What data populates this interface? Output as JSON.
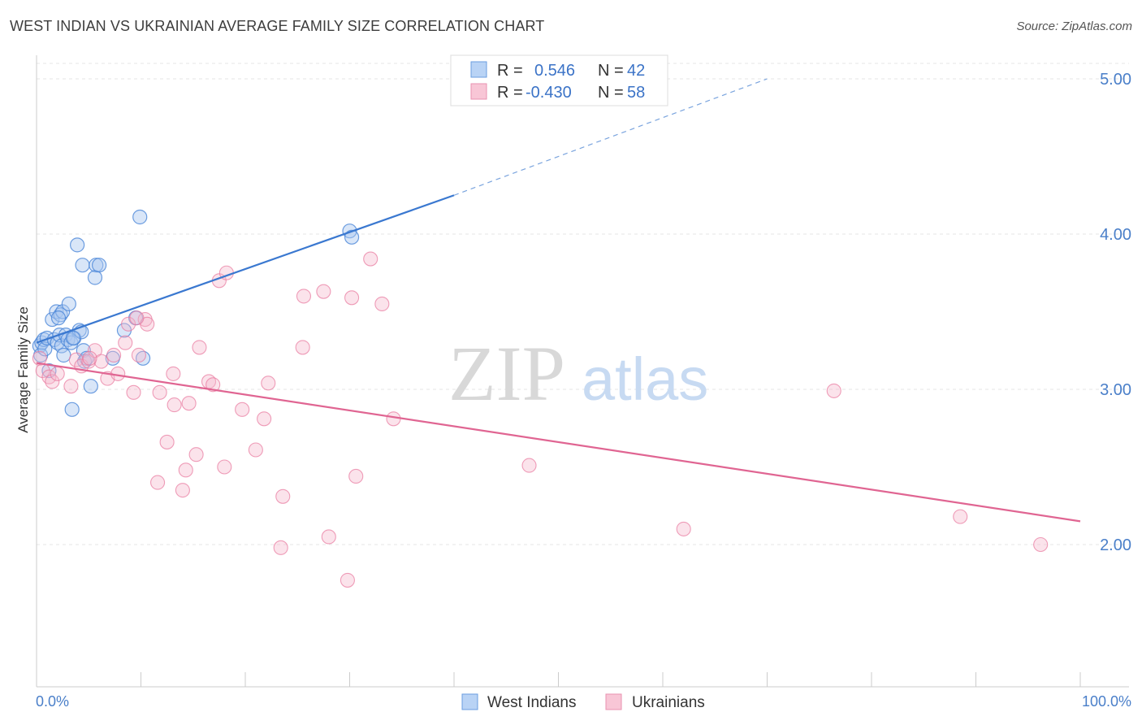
{
  "chart_data": {
    "type": "scatter",
    "title": "WEST INDIAN VS UKRAINIAN AVERAGE FAMILY SIZE CORRELATION CHART",
    "source": "Source: ZipAtlas.com",
    "ylabel": "Average Family Size",
    "xlabel": "",
    "xlim": [
      0,
      100
    ],
    "ylim": [
      1.0,
      5.05
    ],
    "y_ticks": [
      2.0,
      3.0,
      4.0,
      5.0
    ],
    "y_tick_labels": [
      "2.00",
      "3.00",
      "4.00",
      "5.00"
    ],
    "x_tick_labels": [
      "0.0%",
      "100.0%"
    ],
    "watermark": {
      "zip": "ZIP",
      "atlas": "atlas"
    },
    "colors": {
      "west_indians": "#4a86d8",
      "ukrainians": "#e8769c",
      "west_indians_fill": "#aac8f0",
      "ukrainians_fill": "#f5b8cc"
    },
    "legend": {
      "rows": [
        {
          "r_label": "R = ",
          "r_value": "0.546",
          "n_label": "N = ",
          "n_value": "42"
        },
        {
          "r_label": "R = ",
          "r_value": "-0.430",
          "n_label": "N = ",
          "n_value": "58"
        }
      ]
    },
    "series": [
      {
        "name": "West Indians",
        "trend": {
          "x0": 0,
          "y0": 3.3,
          "x1": 40,
          "y1": 4.25,
          "dash_x1": 70,
          "dash_y1": 5.0
        },
        "points": [
          [
            0.3,
            3.28
          ],
          [
            0.4,
            3.22
          ],
          [
            0.5,
            3.3
          ],
          [
            0.7,
            3.32
          ],
          [
            0.8,
            3.26
          ],
          [
            1.0,
            3.33
          ],
          [
            1.2,
            3.12
          ],
          [
            1.5,
            3.45
          ],
          [
            1.7,
            3.32
          ],
          [
            1.9,
            3.5
          ],
          [
            2.0,
            3.3
          ],
          [
            2.2,
            3.35
          ],
          [
            2.3,
            3.48
          ],
          [
            2.4,
            3.28
          ],
          [
            2.5,
            3.5
          ],
          [
            2.6,
            3.22
          ],
          [
            2.8,
            3.35
          ],
          [
            3.0,
            3.32
          ],
          [
            3.1,
            3.55
          ],
          [
            3.3,
            3.3
          ],
          [
            3.4,
            2.87
          ],
          [
            3.6,
            3.33
          ],
          [
            3.9,
            3.93
          ],
          [
            4.1,
            3.38
          ],
          [
            4.3,
            3.37
          ],
          [
            4.4,
            3.8
          ],
          [
            4.5,
            3.25
          ],
          [
            4.6,
            3.18
          ],
          [
            4.8,
            3.2
          ],
          [
            5.2,
            3.02
          ],
          [
            5.7,
            3.8
          ],
          [
            5.6,
            3.72
          ],
          [
            6.0,
            3.8
          ],
          [
            7.3,
            3.2
          ],
          [
            8.4,
            3.38
          ],
          [
            9.5,
            3.46
          ],
          [
            9.9,
            4.11
          ],
          [
            10.2,
            3.2
          ],
          [
            30.0,
            4.02
          ],
          [
            30.2,
            3.98
          ],
          [
            3.5,
            3.33
          ],
          [
            2.1,
            3.46
          ]
        ]
      },
      {
        "name": "Ukrainians",
        "trend": {
          "x0": 0,
          "y0": 3.17,
          "x1": 100,
          "y1": 2.15
        },
        "points": [
          [
            0.3,
            3.2
          ],
          [
            0.6,
            3.12
          ],
          [
            1.2,
            3.08
          ],
          [
            1.5,
            3.05
          ],
          [
            2.0,
            3.1
          ],
          [
            3.3,
            3.02
          ],
          [
            3.8,
            3.19
          ],
          [
            4.3,
            3.15
          ],
          [
            5.0,
            3.18
          ],
          [
            5.6,
            3.25
          ],
          [
            6.2,
            3.18
          ],
          [
            6.8,
            3.07
          ],
          [
            7.4,
            3.22
          ],
          [
            7.8,
            3.1
          ],
          [
            8.5,
            3.3
          ],
          [
            8.8,
            3.42
          ],
          [
            9.3,
            2.98
          ],
          [
            9.8,
            3.22
          ],
          [
            10.4,
            3.45
          ],
          [
            10.6,
            3.42
          ],
          [
            11.6,
            2.4
          ],
          [
            11.8,
            2.98
          ],
          [
            12.5,
            2.66
          ],
          [
            13.1,
            3.1
          ],
          [
            13.2,
            2.9
          ],
          [
            14.0,
            2.35
          ],
          [
            14.3,
            2.48
          ],
          [
            14.6,
            2.91
          ],
          [
            15.3,
            2.58
          ],
          [
            15.6,
            3.27
          ],
          [
            16.5,
            3.05
          ],
          [
            16.9,
            3.03
          ],
          [
            17.5,
            3.7
          ],
          [
            18.0,
            2.5
          ],
          [
            18.2,
            3.75
          ],
          [
            19.7,
            2.87
          ],
          [
            21.0,
            2.61
          ],
          [
            21.8,
            2.81
          ],
          [
            22.2,
            3.04
          ],
          [
            23.4,
            1.98
          ],
          [
            23.6,
            2.31
          ],
          [
            25.5,
            3.27
          ],
          [
            25.6,
            3.6
          ],
          [
            27.5,
            3.63
          ],
          [
            28.0,
            2.05
          ],
          [
            29.8,
            1.77
          ],
          [
            30.2,
            3.59
          ],
          [
            30.6,
            2.44
          ],
          [
            32.0,
            3.84
          ],
          [
            33.1,
            3.55
          ],
          [
            34.2,
            2.81
          ],
          [
            47.2,
            2.51
          ],
          [
            62.0,
            2.1
          ],
          [
            76.4,
            2.99
          ],
          [
            88.5,
            2.18
          ],
          [
            96.2,
            2.0
          ],
          [
            9.6,
            3.46
          ],
          [
            5.1,
            3.2
          ]
        ]
      }
    ]
  }
}
